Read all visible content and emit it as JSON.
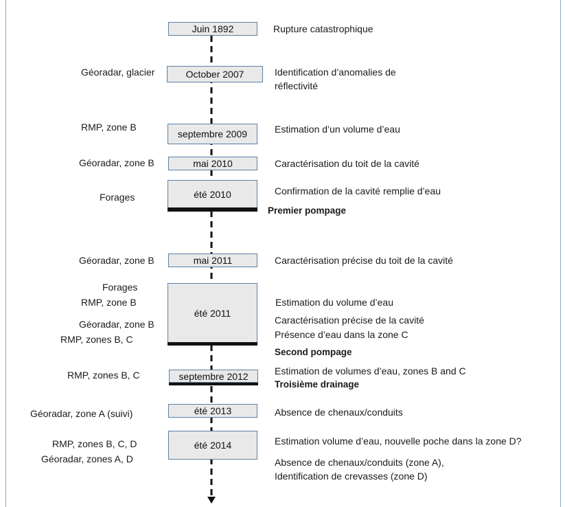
{
  "entries": [
    {
      "date": "Juin 1892",
      "method": "",
      "events": [
        "Rupture catastrophique"
      ]
    },
    {
      "date": "October 2007",
      "method": "Géoradar, glacier",
      "events": [
        "Identification d’anomalies de",
        "réflectivité"
      ]
    },
    {
      "date": "septembre 2009",
      "method": "RMP, zone B",
      "events": [
        "Estimation d’un volume d’eau"
      ]
    },
    {
      "date": "mai 2010",
      "method": "Géoradar, zone B",
      "events": [
        "Caractérisation du toit de la cavité"
      ]
    },
    {
      "date": "été 2010",
      "method": "Forages",
      "events": [
        "Confirmation de la cavité remplie d’eau"
      ],
      "action": "Premier pompage"
    },
    {
      "date": "mai 2011",
      "method": "Géoradar, zone B",
      "events": [
        "Caractérisation précise du toit de la cavité"
      ]
    },
    {
      "date": "été 2011",
      "methods": [
        "Forages",
        "RMP, zone B",
        "Géoradar, zone B",
        "RMP, zones B, C"
      ],
      "events": [
        "Estimation du volume d’eau",
        "Caractérisation précise de la cavité",
        "Présence d’eau dans la zone C"
      ],
      "action": "Second pompage"
    },
    {
      "date": "septembre 2012",
      "method": "RMP, zones B, C",
      "events": [
        "Estimation de volumes d’eau, zones B and C"
      ],
      "action": "Troisième drainage"
    },
    {
      "date": "été 2013",
      "method": "Géoradar, zone A (suivi)",
      "events": [
        "Absence de chenaux/conduits"
      ]
    },
    {
      "date": "été 2014",
      "methods": [
        "RMP, zones B, C, D",
        "Géoradar, zones A, D"
      ],
      "events": [
        "Estimation volume d’eau, nouvelle poche dans la zone D?",
        "Absence de chenaux/conduits (zone A),",
        "Identification de crevasses (zone D)"
      ]
    }
  ]
}
